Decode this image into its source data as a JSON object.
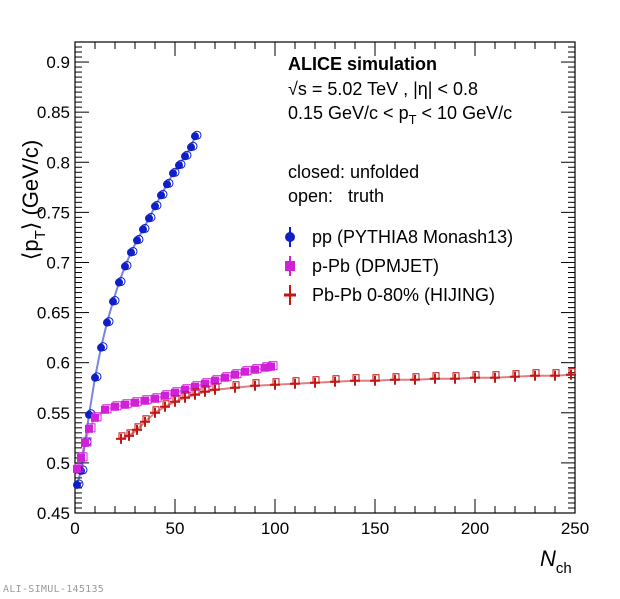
{
  "chart_data": {
    "type": "scatter",
    "xlabel": "N",
    "xlabel_sub": "ch",
    "ylabel": "⟨p",
    "ylabel_sub": "T",
    "ylabel_suffix": "⟩ (GeV/c)",
    "xlim": [
      0,
      250
    ],
    "ylim": [
      0.45,
      0.92
    ],
    "x_ticks": [
      0,
      50,
      100,
      150,
      200,
      250
    ],
    "x_tick_labels": [
      "0",
      "50",
      "100",
      "150",
      "200",
      "250"
    ],
    "y_ticks": [
      0.45,
      0.5,
      0.55,
      0.6,
      0.65,
      0.7,
      0.75,
      0.8,
      0.85,
      0.9
    ],
    "y_tick_labels": [
      "0.45",
      "0.5",
      "0.55",
      "0.6",
      "0.65",
      "0.7",
      "0.75",
      "0.8",
      "0.85",
      "0.9"
    ],
    "grid": false,
    "legend_placement": "top-right",
    "header": {
      "title": "ALICE simulation",
      "line1": "√s = 5.02 TeV , |η| < 0.8",
      "line2": "0.15 GeV/c < p",
      "line2_sub": "T",
      "line2_end": " < 10 GeV/c",
      "line3": "closed: unfolded",
      "line4": "open:   truth"
    },
    "series": [
      {
        "name": "pp (PYTHIA8 Monash13)",
        "color": "#0f1fc8",
        "marker": "circle",
        "x": [
          1,
          3,
          5,
          7,
          10,
          13,
          16,
          19,
          22,
          25,
          28,
          31,
          34,
          37,
          40,
          43,
          46,
          49,
          52,
          55,
          58,
          60
        ],
        "y": [
          0.478,
          0.492,
          0.52,
          0.548,
          0.585,
          0.615,
          0.64,
          0.661,
          0.68,
          0.696,
          0.71,
          0.722,
          0.733,
          0.744,
          0.756,
          0.767,
          0.778,
          0.789,
          0.797,
          0.806,
          0.815,
          0.826
        ]
      },
      {
        "name": "p-Pb (DPMJET)",
        "color": "#d020d8",
        "marker": "square",
        "x": [
          1,
          3,
          5,
          7,
          10,
          15,
          20,
          25,
          30,
          35,
          40,
          45,
          50,
          55,
          60,
          65,
          70,
          75,
          80,
          85,
          90,
          95,
          98
        ],
        "y": [
          0.494,
          0.505,
          0.52,
          0.534,
          0.545,
          0.553,
          0.556,
          0.558,
          0.56,
          0.562,
          0.564,
          0.567,
          0.57,
          0.573,
          0.576,
          0.579,
          0.582,
          0.585,
          0.588,
          0.591,
          0.593,
          0.595,
          0.596
        ]
      },
      {
        "name": "Pb-Pb 0-80% (HIJING)",
        "color": "#c41515",
        "marker": "cross",
        "x": [
          23,
          27,
          31,
          35,
          40,
          45,
          50,
          55,
          60,
          65,
          70,
          80,
          90,
          100,
          110,
          120,
          130,
          140,
          150,
          160,
          170,
          180,
          190,
          200,
          210,
          220,
          230,
          240,
          248
        ],
        "y": [
          0.524,
          0.527,
          0.533,
          0.541,
          0.55,
          0.556,
          0.561,
          0.565,
          0.568,
          0.571,
          0.573,
          0.575,
          0.577,
          0.578,
          0.579,
          0.58,
          0.581,
          0.582,
          0.582,
          0.583,
          0.583,
          0.584,
          0.584,
          0.585,
          0.585,
          0.586,
          0.587,
          0.587,
          0.588
        ]
      }
    ]
  },
  "footer": {
    "figure_id": "ALI-SIMUL-145135"
  }
}
